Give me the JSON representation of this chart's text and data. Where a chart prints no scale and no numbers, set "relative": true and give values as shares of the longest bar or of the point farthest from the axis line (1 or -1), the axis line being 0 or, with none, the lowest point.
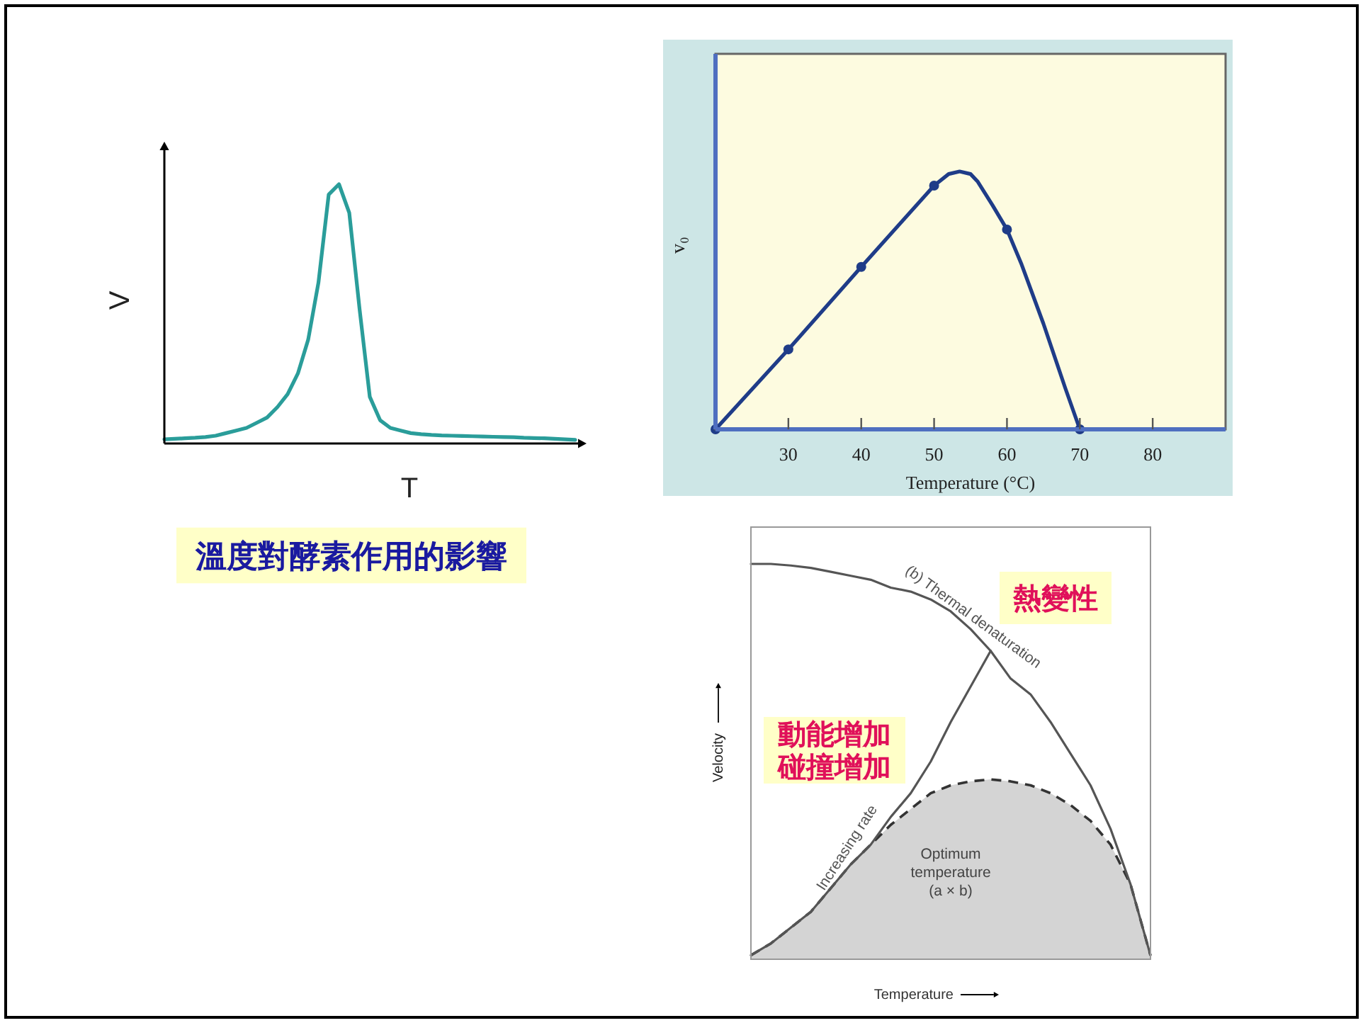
{
  "chart_data": [
    {
      "type": "line",
      "relative": true,
      "xlabel": "T",
      "ylabel": "V",
      "annotations": [
        "溫度對酵素作用的影響"
      ],
      "categories": [
        null,
        null,
        null,
        null,
        null,
        null,
        null,
        null,
        null,
        null,
        null,
        null,
        null,
        null,
        null,
        null,
        null,
        null,
        null,
        null,
        null,
        null,
        null,
        null,
        null,
        null,
        null,
        null,
        null,
        null,
        null,
        null,
        null,
        null,
        null,
        null,
        null,
        null,
        null,
        null,
        null
      ],
      "series": [
        {
          "color": "#2a9d9a",
          "values": [
            0.016,
            0.018,
            0.02,
            0.022,
            0.025,
            0.03,
            0.04,
            0.05,
            0.06,
            0.08,
            0.1,
            0.14,
            0.19,
            0.27,
            0.4,
            0.62,
            0.96,
            1.0,
            0.89,
            0.52,
            0.18,
            0.09,
            0.06,
            0.05,
            0.04,
            0.036,
            0.033,
            0.031,
            0.03,
            0.029,
            0.028,
            0.027,
            0.026,
            0.025,
            0.024,
            0.022,
            0.021,
            0.02,
            0.018,
            0.016,
            0.014
          ]
        }
      ]
    },
    {
      "type": "line",
      "relative": true,
      "xlabel": "Temperature (°C)",
      "ylabel": "v₀",
      "xlim": [
        20,
        90
      ],
      "xticks": [
        30,
        40,
        50,
        60,
        70,
        80
      ],
      "tick_labels": "x",
      "series": [
        {
          "color": "#1f3c88",
          "x": [
            20,
            30,
            40,
            50,
            52,
            53.5,
            55,
            56,
            58,
            60,
            62,
            65,
            68,
            70
          ],
          "values": [
            0,
            0.31,
            0.63,
            0.945,
            0.99,
            1.0,
            0.99,
            0.96,
            0.87,
            0.775,
            0.64,
            0.41,
            0.16,
            0
          ]
        },
        {
          "type": "scatter",
          "marker": "circle",
          "color": "#1f3c88",
          "x": [
            20,
            30,
            40,
            50,
            60,
            70
          ],
          "values": [
            0,
            0.31,
            0.63,
            0.945,
            0.775,
            0
          ]
        }
      ]
    },
    {
      "type": "line",
      "relative": true,
      "xlabel": "Temperature",
      "ylabel": "Velocity",
      "annotations": [
        "熱變性",
        "動能增加",
        "碰撞增加"
      ],
      "categories": [
        null,
        null,
        null,
        null,
        null,
        null,
        null,
        null,
        null,
        null,
        null,
        null,
        null,
        null,
        null,
        null,
        null,
        null,
        null,
        null,
        null
      ],
      "series": [
        {
          "type": "area",
          "name": "Optimum temperature (a × b)",
          "color": "#d4d4d4",
          "line_style": "dashed",
          "values": [
            0.01,
            0.04,
            0.08,
            0.12,
            0.18,
            0.24,
            0.29,
            0.34,
            0.38,
            0.42,
            0.44,
            0.45,
            0.455,
            0.45,
            0.44,
            0.42,
            0.39,
            0.35,
            0.29,
            0.19,
            0.01
          ]
        },
        {
          "name": "(b) Thermal denaturation",
          "color": "#555555",
          "values": [
            1.0,
            1.0,
            0.996,
            0.99,
            0.98,
            0.97,
            0.96,
            0.94,
            0.93,
            0.91,
            0.88,
            0.835,
            0.78,
            0.71,
            0.67,
            0.6,
            0.52,
            0.44,
            0.33,
            0.19,
            0.01
          ]
        },
        {
          "name": "Increasing rate",
          "color": "#555555",
          "values": [
            0.01,
            0.04,
            0.08,
            0.12,
            0.18,
            0.24,
            0.29,
            0.36,
            0.42,
            0.5,
            0.6,
            0.69,
            0.78,
            null,
            null,
            null,
            null,
            null,
            null,
            null,
            null
          ]
        }
      ]
    }
  ]
}
